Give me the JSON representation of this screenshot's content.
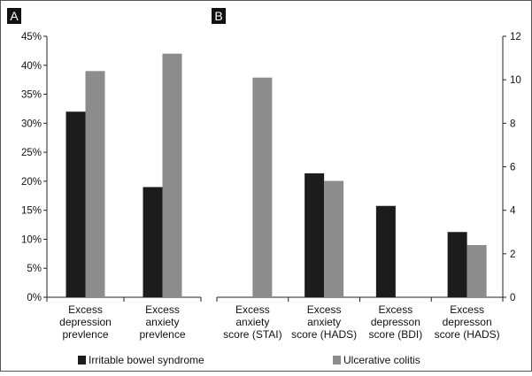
{
  "panel_labels": [
    "A",
    "B"
  ],
  "colors": {
    "ibs": "#1c1c1c",
    "uc": "#8c8c8c",
    "axis": "#222222",
    "border": "#555555"
  },
  "legend": {
    "ibs": "Irritable bowel syndrome",
    "uc": "Ulcerative colitis"
  },
  "chart_data": [
    {
      "type": "bar",
      "panel": "A",
      "categories": [
        [
          "Excess",
          "depression",
          "prevlence"
        ],
        [
          "Excess",
          "anxiety",
          "prevlence"
        ]
      ],
      "series": [
        {
          "name": "Irritable bowel syndrome",
          "values": [
            32,
            19
          ]
        },
        {
          "name": "Ulcerative colitis",
          "values": [
            39,
            42
          ]
        }
      ],
      "ylim": [
        0,
        45
      ],
      "yticks": [
        0,
        5,
        10,
        15,
        20,
        25,
        30,
        35,
        40,
        45
      ],
      "ytick_labels": [
        "0%",
        "5%",
        "10%",
        "15%",
        "20%",
        "25%",
        "30%",
        "35%",
        "40%",
        "45%"
      ],
      "axis_side": "left",
      "grid": false,
      "legend_position": "bottom"
    },
    {
      "type": "bar",
      "panel": "B",
      "categories": [
        [
          "Excess",
          "anxiety",
          "score (STAI)"
        ],
        [
          "Excess",
          "anxiety",
          "score (HADS)"
        ],
        [
          "Excess",
          "depresson",
          "score (BDI)"
        ],
        [
          "Excess",
          "depresson",
          "score (HADS)"
        ]
      ],
      "series": [
        {
          "name": "Irritable bowel syndrome",
          "values": [
            null,
            5.7,
            4.2,
            3.0
          ]
        },
        {
          "name": "Ulcerative colitis",
          "values": [
            10.1,
            5.35,
            null,
            2.4
          ]
        }
      ],
      "ylim": [
        0,
        12
      ],
      "yticks": [
        0,
        2,
        4,
        6,
        8,
        10,
        12
      ],
      "ytick_labels": [
        "0",
        "2",
        "4",
        "6",
        "8",
        "10",
        "12"
      ],
      "axis_side": "right",
      "grid": false,
      "legend_position": "bottom"
    }
  ]
}
